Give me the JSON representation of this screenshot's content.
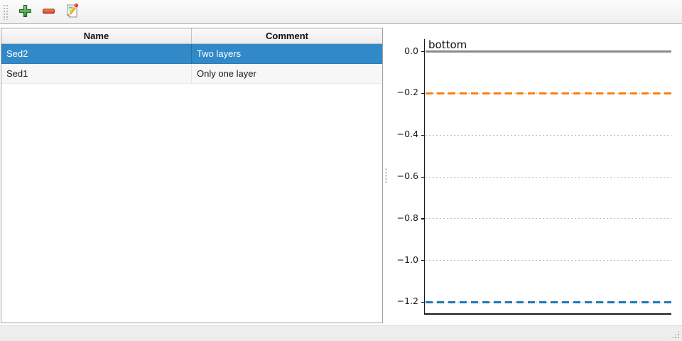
{
  "toolbar": {
    "buttons": [
      {
        "id": "add",
        "icon": "plus-icon"
      },
      {
        "id": "remove",
        "icon": "minus-icon"
      },
      {
        "id": "edit",
        "icon": "edit-icon"
      }
    ],
    "icon_colors": {
      "add_green": "#2e8b2e",
      "remove_red": "#e04428",
      "edit_pencil": "#e9c63f"
    }
  },
  "table": {
    "columns": [
      {
        "label": "Name"
      },
      {
        "label": "Comment"
      }
    ],
    "rows": [
      {
        "name": "Sed2",
        "comment": "Two layers",
        "selected": true
      },
      {
        "name": "Sed1",
        "comment": "Only one layer",
        "selected": false
      }
    ],
    "selection_color": "#3189c8"
  },
  "chart_data": {
    "type": "line",
    "title": "",
    "xlabel": "",
    "ylabel": "",
    "ylim": [
      -1.26,
      0.06
    ],
    "grid": true,
    "grid_color": "#bdbdbd",
    "annotation": {
      "text": "bottom",
      "y": 0.0
    },
    "yticks": [
      {
        "value": 0.0,
        "label": "0.0"
      },
      {
        "value": -0.2,
        "label": "−0.2"
      },
      {
        "value": -0.4,
        "label": "−0.4"
      },
      {
        "value": -0.6,
        "label": "−0.6"
      },
      {
        "value": -0.8,
        "label": "−0.8"
      },
      {
        "value": -1.0,
        "label": "−1.0"
      },
      {
        "value": -1.2,
        "label": "−1.2"
      }
    ],
    "series": [
      {
        "name": "gray-solid",
        "y": 0.0,
        "color": "#8a8a8a",
        "linestyle": "solid",
        "linewidth": 3
      },
      {
        "name": "orange-dashed",
        "y": -0.2,
        "color": "#ff7f0e",
        "linestyle": "dashed",
        "linewidth": 3
      },
      {
        "name": "blue-dashed",
        "y": -1.2,
        "color": "#1f77b4",
        "linestyle": "dashed",
        "linewidth": 3
      }
    ]
  },
  "statusbar": {
    "text": ""
  }
}
